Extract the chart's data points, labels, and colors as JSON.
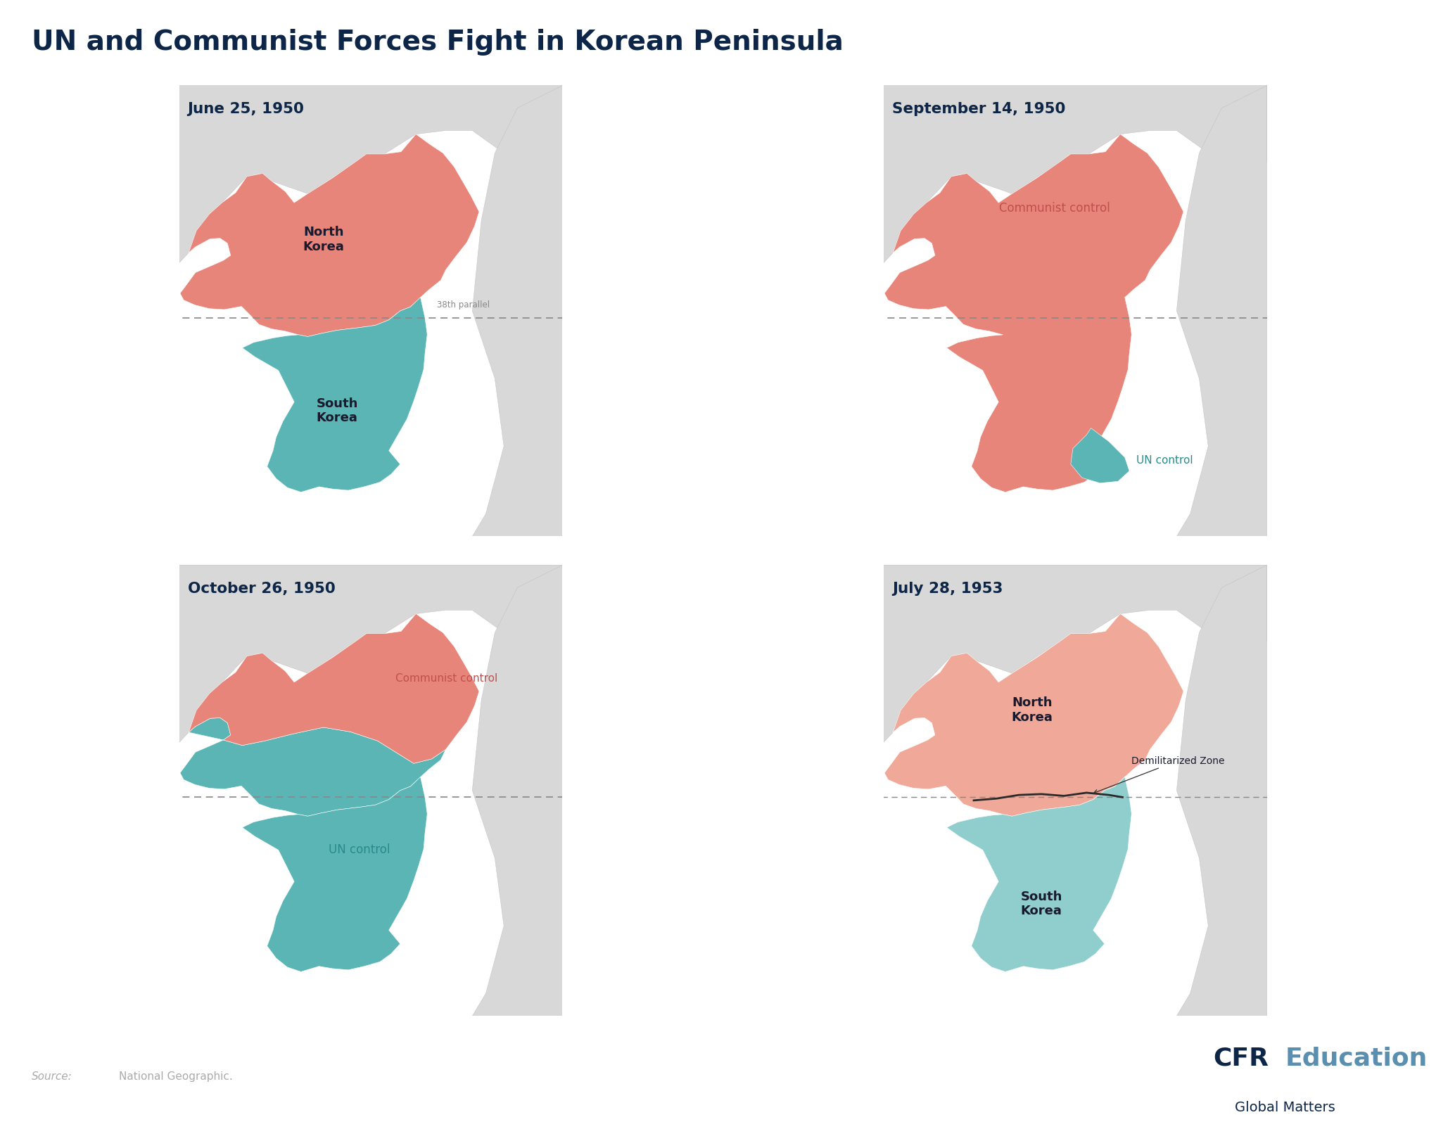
{
  "title": "UN and Communist Forces Fight in Korean Peninsula",
  "title_color": "#0d2547",
  "title_fontsize": 28,
  "background_color": "#ffffff",
  "panel_bg": "#faf9f6",
  "ocean_color": "#f0f0f0",
  "land_color": "#d8d8d8",
  "communist_color": "#e8857a",
  "un_color": "#5bb5b5",
  "communist_color_light": "#f0a898",
  "un_color_light": "#90cece",
  "panels": [
    {
      "title": "June 25, 1950",
      "scenario": 0
    },
    {
      "title": "September 14, 1950",
      "scenario": 1
    },
    {
      "title": "October 26, 1950",
      "scenario": 2
    },
    {
      "title": "July 28, 1953",
      "scenario": 3
    }
  ],
  "source_italic": "Source:",
  "source_normal": " National Geographic.",
  "cfr_bold": "CFR",
  "cfr_light": "Education",
  "cfr_sub": "Global Matters",
  "cfr_color_bold": "#0d2547",
  "cfr_color_light": "#5a8fb0",
  "cfr_sub_color": "#0d2547",
  "panel_border_color": "#bbbbbb",
  "parallel_color": "#888888",
  "parallel_label": "38th parallel",
  "label_communist": "Communist control",
  "label_un": "UN control",
  "label_north": "North\nKorea",
  "label_south": "South\nKorea",
  "label_dmz": "Demilitarized Zone",
  "communist_label_color": "#c0504d",
  "un_label_color": "#2a8a8a",
  "dark_label_color": "#1a1a2e",
  "map_xlim": [
    124.0,
    132.5
  ],
  "map_ylim": [
    33.5,
    43.5
  ]
}
